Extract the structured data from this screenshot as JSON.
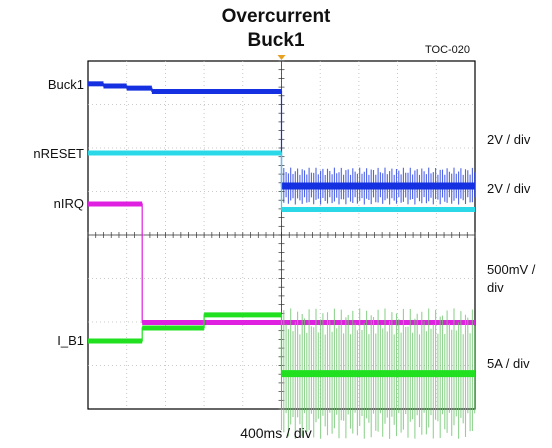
{
  "chart_data": {
    "type": "line",
    "title": "Overcurrent",
    "subtitle": "Buck1",
    "figure_tag": "TOC-020",
    "xlabel": "400ms / div",
    "grid": true,
    "x_divisions": 10,
    "y_divisions": 8,
    "trigger_marker_color": "#e8a020",
    "channels": [
      {
        "name": "Buck1",
        "color": "#1430e0",
        "segments": [
          [
            0.0,
            0.4,
            0.1
          ],
          [
            0.4,
            1.0,
            0.0
          ],
          [
            1.0,
            1.65,
            -0.1
          ],
          [
            1.65,
            5.0,
            -0.25
          ],
          [
            5.0,
            10.0,
            -4.6
          ]
        ],
        "noise_start": 1.65,
        "noisy_after": 5.0,
        "noise_amp": 0.85
      },
      {
        "name": "nRESET",
        "color": "#2ad8e8",
        "segments": [
          [
            0.0,
            5.0,
            0.0
          ],
          [
            5.0,
            10.0,
            -2.6
          ]
        ]
      },
      {
        "name": "nIRQ",
        "color": "#e020e0",
        "segments": [
          [
            0.0,
            1.4,
            0.0
          ],
          [
            1.4,
            10.0,
            -5.45
          ]
        ]
      },
      {
        "name": "I_B1",
        "color": "#20e020",
        "segments": [
          [
            0.0,
            1.4,
            0.0
          ],
          [
            1.4,
            3.0,
            0.6
          ],
          [
            3.0,
            5.0,
            1.2
          ],
          [
            5.0,
            10.0,
            -1.5
          ]
        ],
        "noise_start": 0,
        "noisy_after": 5.0,
        "noise_amp": 3.0,
        "band_color": "#6cc46c"
      }
    ],
    "scale_labels": [
      "2V / div",
      "2V / div",
      "500mV / div",
      "5A / div"
    ]
  }
}
